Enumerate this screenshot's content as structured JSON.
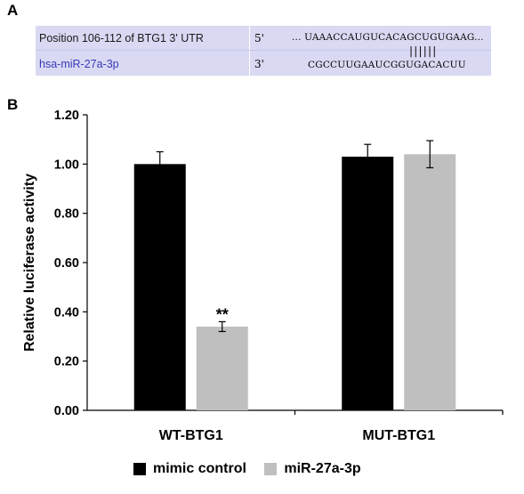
{
  "panel_a": {
    "letter": "A",
    "utr_label": "Position 106-112 of BTG1 3' UTR",
    "mir_label": "hsa-miR-27a-3p",
    "prime5": "5'",
    "prime3": "3'",
    "seq_top": "... UAAACCAUGUCACAGCUGUGAAG...",
    "pair_lines": "||||||",
    "seq_bottom": "CGCCUUGAAUCGGUGACACUU"
  },
  "panel_b": {
    "letter": "B"
  },
  "chart_data": {
    "type": "bar",
    "title": "",
    "xlabel": "",
    "ylabel": "Relative luciferase activity",
    "ylim": [
      0,
      1.2
    ],
    "yticks": [
      "0.00",
      "0.20",
      "0.40",
      "0.60",
      "0.80",
      "1.00",
      "1.20"
    ],
    "categories": [
      "WT-BTG1",
      "MUT-BTG1"
    ],
    "series": [
      {
        "name": "mimic control",
        "color": "#000000",
        "values": [
          1.0,
          1.03
        ],
        "errors": [
          0.05,
          0.05
        ]
      },
      {
        "name": "miR-27a-3p",
        "color": "#bfbfbf",
        "values": [
          0.34,
          1.04
        ],
        "errors": [
          0.02,
          0.055
        ]
      }
    ],
    "annotations": [
      {
        "text": "**",
        "category": 0,
        "series": 1
      }
    ],
    "legend_position": "bottom"
  }
}
